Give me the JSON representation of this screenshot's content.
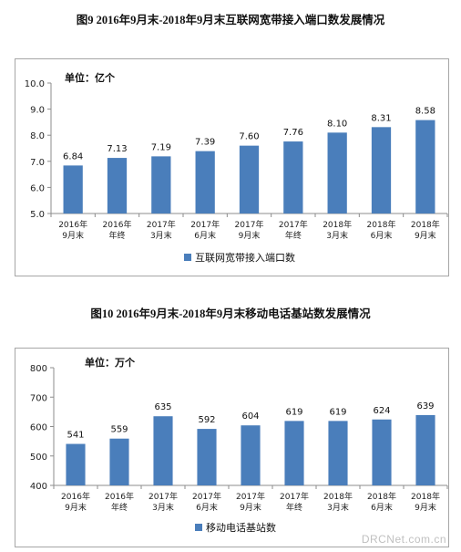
{
  "watermark": "DRCNet.com.cn",
  "charts": [
    {
      "figure_title": "图9  2016年9月末-2018年9月末互联网宽带接入端口数发展情况",
      "unit_label": "单位：亿个"
    },
    {
      "figure_title": "图10  2016年9月末-2018年9月末移动电话基站数发展情况",
      "unit_label": "单位：万个"
    }
  ],
  "chart_data": [
    {
      "type": "bar",
      "title": "图9  2016年9月末-2018年9月末互联网宽带接入端口数发展情况",
      "categories": [
        [
          "2016年",
          "9月末"
        ],
        [
          "2016年",
          "年终"
        ],
        [
          "2017年",
          "3月末"
        ],
        [
          "2017年",
          "6月末"
        ],
        [
          "2017年",
          "9月末"
        ],
        [
          "2017年",
          "年终"
        ],
        [
          "2018年",
          "3月末"
        ],
        [
          "2018年",
          "6月末"
        ],
        [
          "2018年",
          "9月末"
        ]
      ],
      "series": [
        {
          "name": "互联网宽带接入端口数",
          "values": [
            6.84,
            7.13,
            7.19,
            7.39,
            7.6,
            7.76,
            8.1,
            8.31,
            8.58
          ]
        }
      ],
      "value_labels": [
        "6.84",
        "7.13",
        "7.19",
        "7.39",
        "7.60",
        "7.76",
        "8.10",
        "8.31",
        "8.58"
      ],
      "ylim": [
        5.0,
        10.0
      ],
      "yticks": [
        "5.0",
        "6.0",
        "7.0",
        "8.0",
        "9.0",
        "10.0"
      ],
      "ylabel": "单位：亿个",
      "xlabel": "",
      "grid": false,
      "legend": "bottom",
      "bar_color": "#4a7ebb"
    },
    {
      "type": "bar",
      "title": "图10  2016年9月末-2018年9月末移动电话基站数发展情况",
      "categories": [
        [
          "2016年",
          "9月末"
        ],
        [
          "2016年",
          "年终"
        ],
        [
          "2017年",
          "3月末"
        ],
        [
          "2017年",
          "6月末"
        ],
        [
          "2017年",
          "9月末"
        ],
        [
          "2017年",
          "年终"
        ],
        [
          "2018年",
          "3月末"
        ],
        [
          "2018年",
          "6月末"
        ],
        [
          "2018年",
          "9月末"
        ]
      ],
      "series": [
        {
          "name": "移动电话基站数",
          "values": [
            541,
            559,
            635,
            592,
            604,
            619,
            619,
            624,
            639
          ]
        }
      ],
      "value_labels": [
        "541",
        "559",
        "635",
        "592",
        "604",
        "619",
        "619",
        "624",
        "639"
      ],
      "ylim": [
        400,
        800
      ],
      "yticks": [
        "400",
        "500",
        "600",
        "700",
        "800"
      ],
      "ylabel": "单位：万个",
      "xlabel": "",
      "grid": false,
      "legend": "bottom",
      "bar_color": "#4a7ebb"
    }
  ]
}
